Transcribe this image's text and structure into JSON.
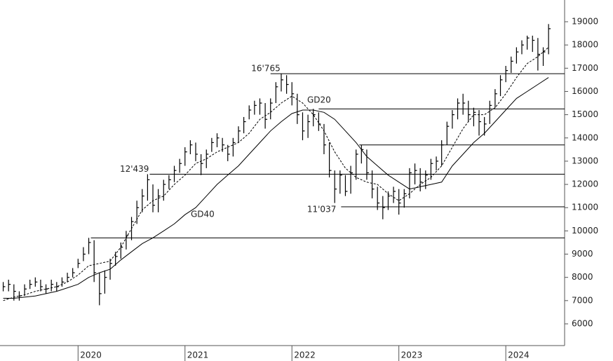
{
  "chart_data": {
    "type": "ohlc",
    "x": [
      2019.3,
      2019.35,
      2019.4,
      2019.45,
      2019.5,
      2019.55,
      2019.6,
      2019.65,
      2019.7,
      2019.75,
      2019.8,
      2019.85,
      2019.9,
      2019.95,
      2020,
      2020.05,
      2020.1,
      2020.15,
      2020.2,
      2020.25,
      2020.3,
      2020.35,
      2020.4,
      2020.45,
      2020.5,
      2020.55,
      2020.6,
      2020.65,
      2020.7,
      2020.75,
      2020.8,
      2020.85,
      2020.9,
      2020.95,
      2021,
      2021.05,
      2021.1,
      2021.15,
      2021.2,
      2021.25,
      2021.3,
      2021.35,
      2021.4,
      2021.45,
      2021.5,
      2021.55,
      2021.6,
      2021.65,
      2021.7,
      2021.75,
      2021.8,
      2021.85,
      2021.9,
      2021.95,
      2022,
      2022.05,
      2022.1,
      2022.15,
      2022.2,
      2022.25,
      2022.3,
      2022.35,
      2022.4,
      2022.45,
      2022.5,
      2022.55,
      2022.6,
      2022.65,
      2022.7,
      2022.75,
      2022.8,
      2022.85,
      2022.9,
      2022.95,
      2023,
      2023.05,
      2023.1,
      2023.15,
      2023.2,
      2023.25,
      2023.3,
      2023.35,
      2023.4,
      2023.45,
      2023.5,
      2023.55,
      2023.6,
      2023.65,
      2023.7,
      2023.75,
      2023.8,
      2023.85,
      2023.9,
      2023.95,
      2024,
      2024.05,
      2024.1,
      2024.15,
      2024.2,
      2024.25,
      2024.3,
      2024.35,
      2024.4
    ],
    "high": [
      7800,
      7900,
      7700,
      7400,
      7700,
      7900,
      8000,
      7900,
      7700,
      7900,
      7800,
      8000,
      8200,
      8400,
      8800,
      9300,
      9700,
      9600,
      8200,
      8300,
      8800,
      9100,
      9500,
      10000,
      10600,
      11300,
      11800,
      12439,
      12000,
      11800,
      12200,
      12400,
      12800,
      13100,
      13600,
      13900,
      13800,
      13300,
      13500,
      14000,
      14200,
      14000,
      13700,
      14000,
      14500,
      14900,
      15400,
      15600,
      15700,
      15500,
      15700,
      16400,
      16765,
      16700,
      16400,
      15900,
      15100,
      15000,
      15250,
      15100,
      14600,
      13800,
      12600,
      12600,
      12400,
      12800,
      13500,
      13700,
      13500,
      12600,
      11900,
      11500,
      11700,
      11900,
      11800,
      11800,
      12700,
      12900,
      12700,
      12600,
      13100,
      13200,
      13900,
      14700,
      15200,
      15700,
      15900,
      15600,
      15300,
      15200,
      14900,
      15600,
      16100,
      16700,
      17100,
      17500,
      17900,
      18200,
      18400,
      18400,
      18300,
      17900,
      18900
    ],
    "low": [
      7400,
      7400,
      7000,
      7000,
      7200,
      7500,
      7600,
      7400,
      7300,
      7400,
      7400,
      7600,
      7800,
      8000,
      8400,
      8700,
      9000,
      7800,
      6800,
      7300,
      7900,
      8500,
      8800,
      9200,
      9600,
      10300,
      10800,
      11300,
      10800,
      10800,
      11300,
      11800,
      12100,
      12500,
      12800,
      13300,
      13000,
      12400,
      12700,
      13400,
      13600,
      13400,
      13000,
      13200,
      13800,
      14200,
      14800,
      15000,
      15000,
      14400,
      14800,
      15500,
      16000,
      15900,
      15400,
      14600,
      13900,
      14000,
      14500,
      14300,
      13300,
      12300,
      11200,
      11600,
      11500,
      11600,
      12200,
      12900,
      12200,
      11400,
      10900,
      10500,
      10900,
      11200,
      10700,
      11000,
      11400,
      12000,
      11700,
      11800,
      12200,
      12600,
      12800,
      13700,
      14400,
      14800,
      15000,
      14700,
      14500,
      14100,
      14100,
      14600,
      15300,
      15800,
      16400,
      16800,
      17200,
      17600,
      17800,
      17700,
      16900,
      17100,
      17600
    ],
    "close": [
      7600,
      7700,
      7400,
      7200,
      7500,
      7700,
      7800,
      7600,
      7500,
      7700,
      7600,
      7800,
      8000,
      8200,
      8600,
      9000,
      9500,
      8200,
      7300,
      8000,
      8600,
      8900,
      9300,
      9800,
      10400,
      11000,
      11500,
      12200,
      11100,
      11500,
      12000,
      12200,
      12600,
      12900,
      13400,
      13700,
      13300,
      12900,
      13300,
      13800,
      14000,
      13700,
      13300,
      13800,
      14300,
      14700,
      15200,
      15400,
      15500,
      14800,
      15500,
      16200,
      16500,
      16300,
      15900,
      15000,
      14300,
      14700,
      15000,
      14600,
      13700,
      12600,
      11800,
      12400,
      11700,
      12500,
      13300,
      13500,
      12500,
      11800,
      11200,
      11000,
      11500,
      11700,
      11200,
      11600,
      12500,
      12600,
      12100,
      12400,
      12900,
      13000,
      13700,
      14500,
      15000,
      15500,
      15500,
      15000,
      15100,
      14700,
      14600,
      15400,
      15900,
      16500,
      16900,
      17300,
      17700,
      18000,
      18300,
      18200,
      17600,
      17700,
      18700
    ],
    "color": "#000000",
    "overlays": [
      {
        "name": "GD20",
        "dash": true,
        "x": [
          2019.3,
          2019.4,
          2019.5,
          2019.6,
          2019.7,
          2019.8,
          2019.9,
          2020,
          2020.1,
          2020.2,
          2020.3,
          2020.4,
          2020.5,
          2020.6,
          2020.7,
          2020.8,
          2020.9,
          2021,
          2021.1,
          2021.2,
          2021.3,
          2021.4,
          2021.5,
          2021.6,
          2021.7,
          2021.8,
          2021.9,
          2022,
          2022.1,
          2022.2,
          2022.3,
          2022.4,
          2022.5,
          2022.6,
          2022.7,
          2022.8,
          2022.9,
          2023,
          2023.1,
          2023.2,
          2023.3,
          2023.4,
          2023.5,
          2023.6,
          2023.7,
          2023.8,
          2023.9,
          2024,
          2024.1,
          2024.2,
          2024.3,
          2024.4
        ],
        "values": [
          7000,
          7150,
          7250,
          7400,
          7500,
          7600,
          7800,
          8100,
          8500,
          8600,
          8700,
          9300,
          10100,
          10900,
          11300,
          11500,
          12000,
          12400,
          12900,
          13100,
          13400,
          13600,
          13800,
          14200,
          14800,
          15100,
          15500,
          15800,
          15500,
          15000,
          14300,
          13400,
          12700,
          12300,
          12100,
          12000,
          11600,
          11300,
          11600,
          12000,
          12300,
          12800,
          13600,
          14400,
          15000,
          15000,
          15300,
          15900,
          16600,
          17200,
          17500,
          17900
        ]
      },
      {
        "name": "GD40",
        "dash": false,
        "x": [
          2019.3,
          2019.4,
          2019.5,
          2019.6,
          2019.7,
          2019.8,
          2019.9,
          2020,
          2020.1,
          2020.2,
          2020.3,
          2020.4,
          2020.5,
          2020.6,
          2020.7,
          2020.8,
          2020.9,
          2021,
          2021.1,
          2021.2,
          2021.3,
          2021.4,
          2021.5,
          2021.6,
          2021.7,
          2021.8,
          2021.9,
          2022,
          2022.1,
          2022.2,
          2022.3,
          2022.4,
          2022.5,
          2022.6,
          2022.7,
          2022.8,
          2022.9,
          2023,
          2023.1,
          2023.2,
          2023.3,
          2023.4,
          2023.5,
          2023.6,
          2023.7,
          2023.8,
          2023.9,
          2024,
          2024.1,
          2024.2,
          2024.3,
          2024.4
        ],
        "values": [
          7100,
          7100,
          7150,
          7200,
          7300,
          7400,
          7550,
          7700,
          8000,
          8200,
          8350,
          8750,
          9100,
          9450,
          9700,
          10000,
          10300,
          10700,
          11000,
          11500,
          12000,
          12400,
          12800,
          13300,
          13800,
          14300,
          14700,
          15050,
          15200,
          15200,
          15100,
          14800,
          14300,
          13800,
          13200,
          12800,
          12400,
          12100,
          11800,
          11900,
          12000,
          12100,
          12800,
          13300,
          13800,
          14200,
          14700,
          15200,
          15700,
          16000,
          16300,
          16600
        ]
      }
    ],
    "levels": [
      {
        "value": 9700,
        "from": 2020.12
      },
      {
        "value": 12439,
        "label": "12'439",
        "from": 2020.67
      },
      {
        "value": 16765,
        "label": "16'765",
        "from": 2021.8
      },
      {
        "value": 15250,
        "from": 2022.25
      },
      {
        "value": 11037,
        "label": "11'037",
        "from": 2022.46
      },
      {
        "value": 13700,
        "from": 2022.63
      }
    ],
    "xlim": [
      2019.27,
      2024.55
    ],
    "xticks": [
      2020,
      2021,
      2022,
      2023,
      2024
    ],
    "ylim": [
      5065,
      19935
    ],
    "yticks": [
      6000,
      7000,
      8000,
      9000,
      10000,
      11000,
      12000,
      13000,
      14000,
      15000,
      16000,
      17000,
      18000,
      19000
    ]
  }
}
